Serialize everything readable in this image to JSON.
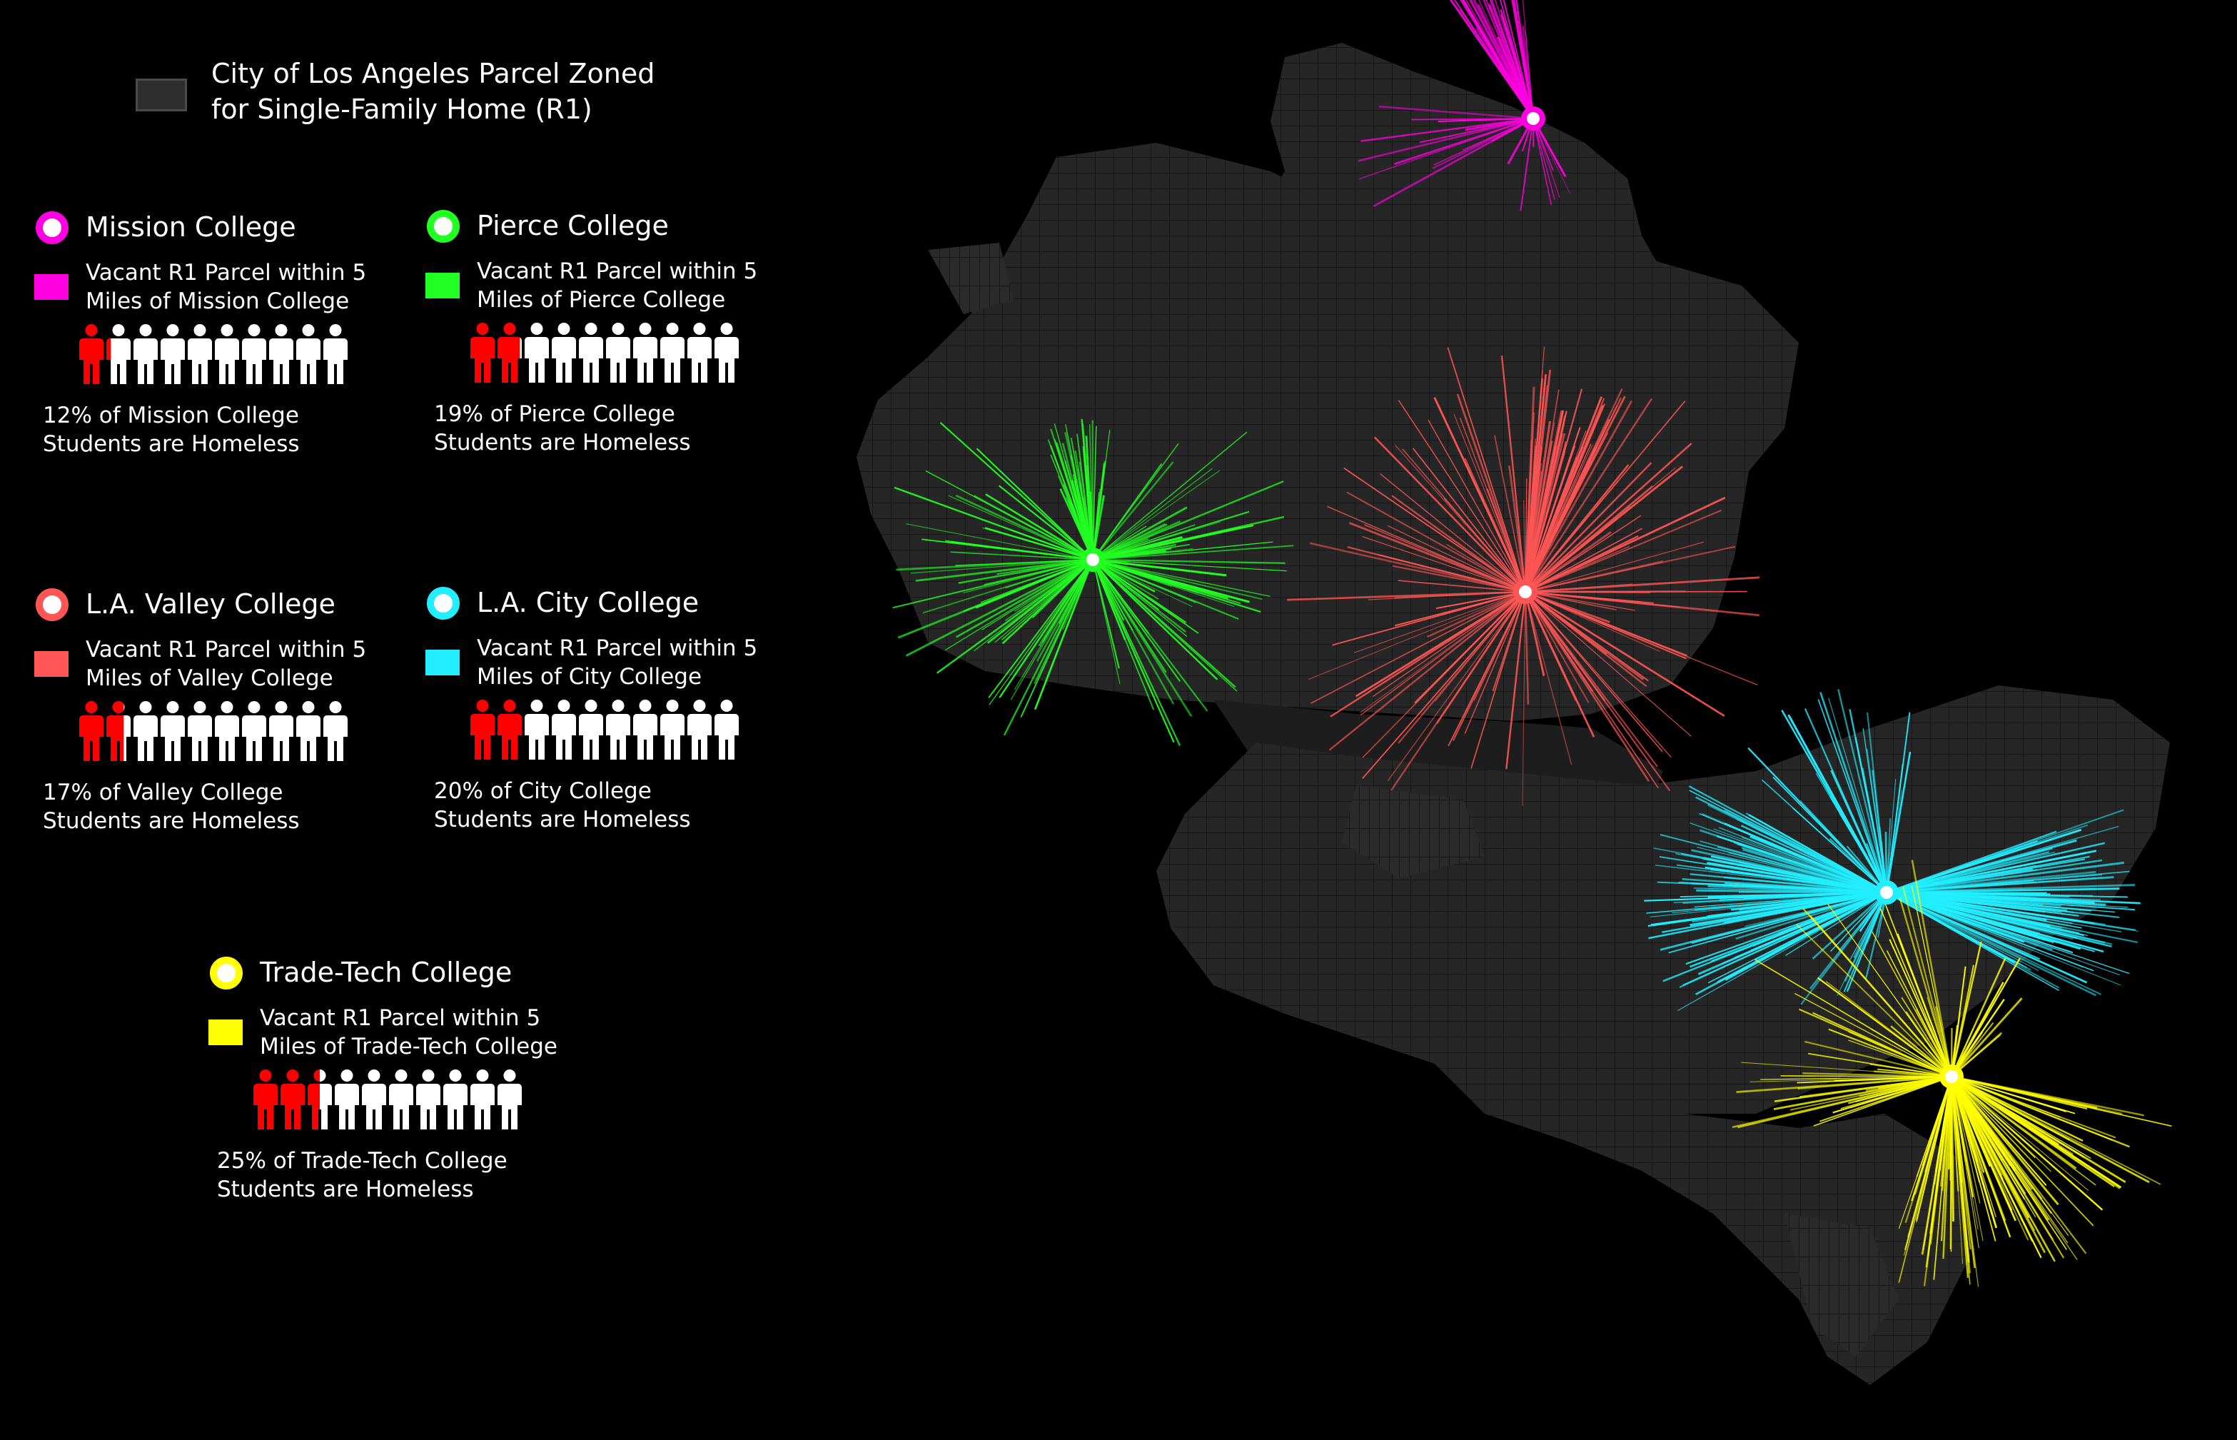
{
  "legend": {
    "r1_line1": "City of Los Angeles Parcel Zoned",
    "r1_line2": "for Single-Family Home (R1)",
    "r1_color": "#2d2d2d"
  },
  "colleges": [
    {
      "key": "mission",
      "name": "Mission College",
      "color": "#ff00e0",
      "vacant_line1": "Vacant R1 Parcel within 5",
      "vacant_line2": "Miles of Mission College",
      "homeless_percent": 12,
      "homeless_figures": 1.2,
      "total_figures": 10,
      "stat_line1": "12% of Mission College",
      "stat_line2": "Students are Homeless"
    },
    {
      "key": "pierce",
      "name": "Pierce College",
      "color": "#22ff22",
      "vacant_line1": "Vacant R1 Parcel within 5",
      "vacant_line2": "Miles of Pierce College",
      "homeless_percent": 19,
      "homeless_figures": 1.9,
      "total_figures": 10,
      "stat_line1": "19% of Pierce College",
      "stat_line2": "Students are Homeless"
    },
    {
      "key": "valley",
      "name": "L.A. Valley College",
      "color": "#ff5555",
      "vacant_line1": "Vacant R1 Parcel within 5",
      "vacant_line2": "Miles of Valley College",
      "homeless_percent": 17,
      "homeless_figures": 1.7,
      "total_figures": 10,
      "stat_line1": "17% of Valley College",
      "stat_line2": "Students are Homeless"
    },
    {
      "key": "city",
      "name": "L.A. City College",
      "color": "#22eeff",
      "vacant_line1": "Vacant R1 Parcel within 5",
      "vacant_line2": "Miles of City College",
      "homeless_percent": 20,
      "homeless_figures": 2.0,
      "total_figures": 10,
      "stat_line1": "20% of City College",
      "stat_line2": "Students are Homeless"
    },
    {
      "key": "tradetech",
      "name": "Trade-Tech College",
      "color": "#ffff00",
      "vacant_line1": "Vacant R1 Parcel within 5",
      "vacant_line2": "Miles of Trade-Tech College",
      "homeless_percent": 25,
      "homeless_figures": 2.5,
      "total_figures": 10,
      "stat_line1": "25% of Trade-Tech College",
      "stat_line2": "Students are Homeless"
    }
  ],
  "colors": {
    "homeless_figure": "#ff0000",
    "housed_figure": "#ffffff",
    "background": "#000000"
  }
}
